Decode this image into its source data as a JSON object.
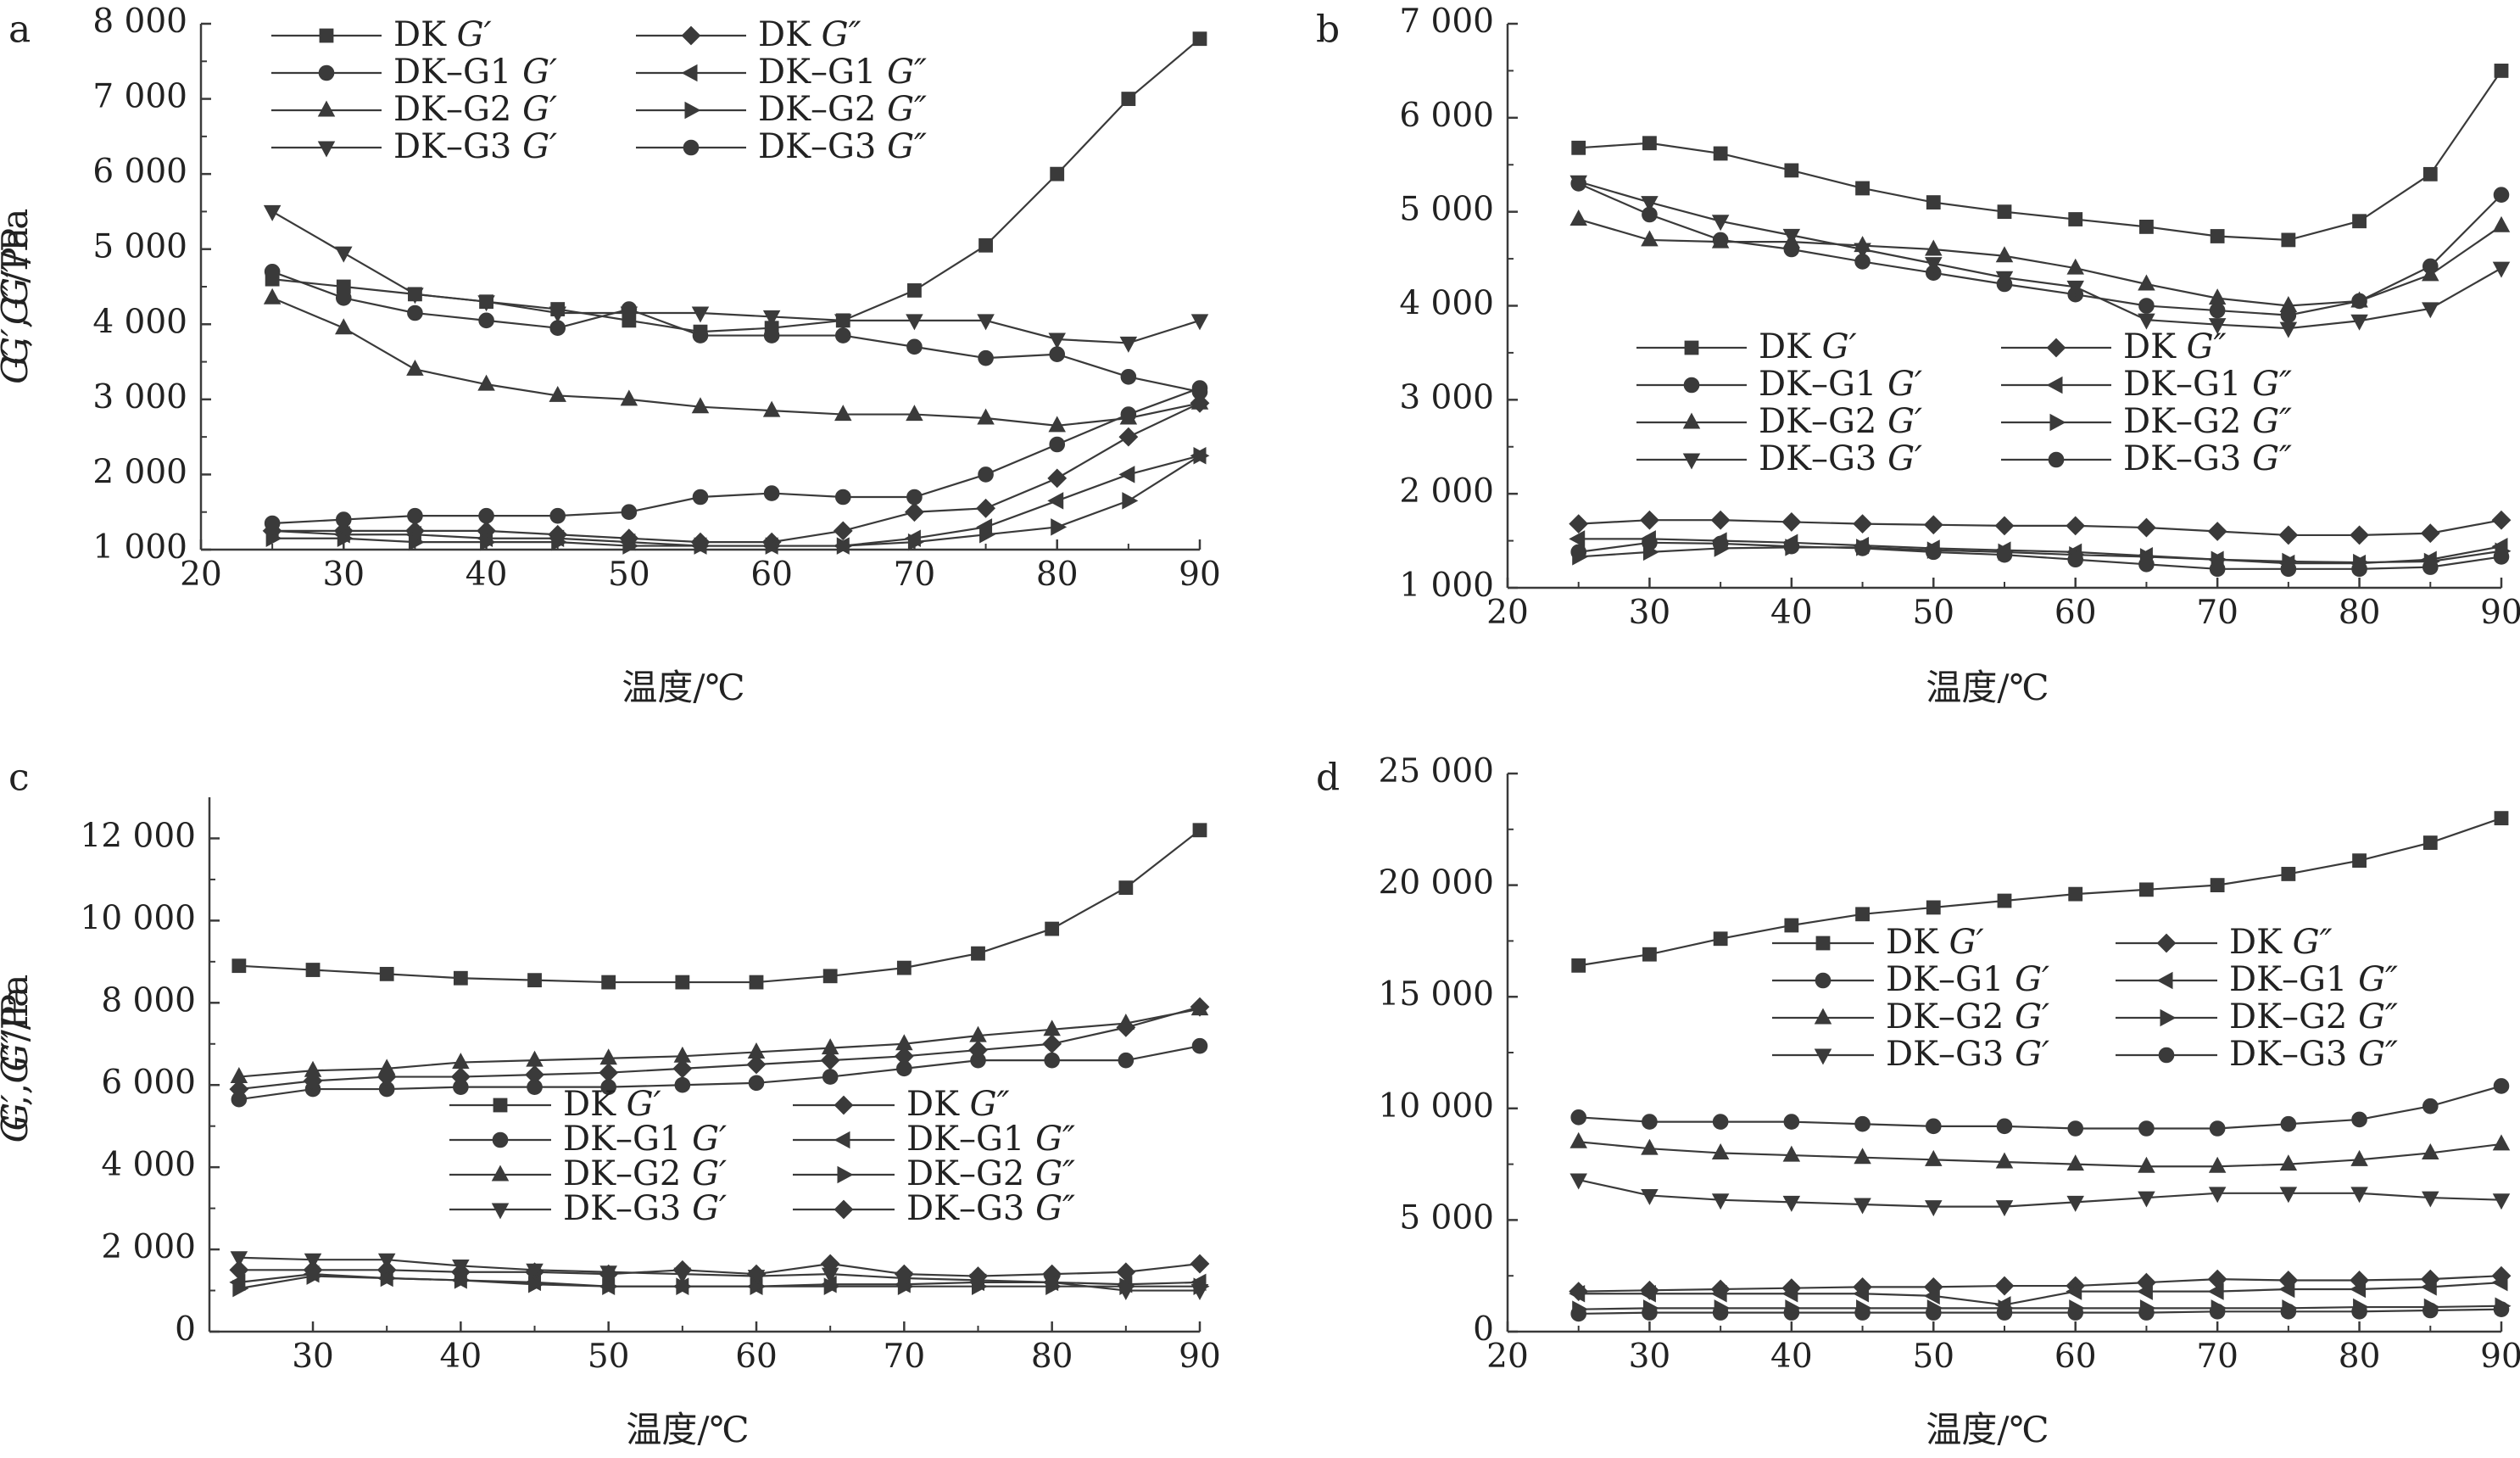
{
  "chart_data": [
    {
      "type": "line",
      "panel": "a",
      "xlabel": "温度/℃",
      "ylabel": "G′, G″/Pa",
      "xlim": [
        20,
        90
      ],
      "ylim": [
        1000,
        8000
      ],
      "xticks": [
        20,
        30,
        40,
        50,
        60,
        70,
        80,
        90
      ],
      "yticks": [
        1000,
        2000,
        3000,
        4000,
        5000,
        6000,
        7000,
        8000
      ],
      "ytick_labels": [
        "1 000",
        "2 000",
        "3 000",
        "4 000",
        "5 000",
        "6 000",
        "7 000",
        "8 000"
      ],
      "legend_position": "top",
      "x": [
        25,
        30,
        35,
        40,
        45,
        50,
        55,
        60,
        65,
        70,
        75,
        80,
        85,
        90
      ],
      "series": [
        {
          "name": "DK G′",
          "marker": "square",
          "values": [
            4600,
            4500,
            4400,
            4300,
            4200,
            4050,
            3900,
            3950,
            4050,
            4450,
            5050,
            6000,
            7000,
            7800
          ]
        },
        {
          "name": "DK G″",
          "marker": "diamond",
          "values": [
            1250,
            1250,
            1250,
            1250,
            1200,
            1150,
            1100,
            1100,
            1250,
            1500,
            1550,
            1950,
            2500,
            2950
          ]
        },
        {
          "name": "DK-G1 G′",
          "marker": "circle",
          "values": [
            4700,
            4350,
            4150,
            4050,
            3950,
            4200,
            3850,
            3850,
            3850,
            3700,
            3550,
            3600,
            3300,
            3100
          ]
        },
        {
          "name": "DK-G1 G″",
          "marker": "triangle-left",
          "values": [
            1250,
            1200,
            1200,
            1150,
            1150,
            1100,
            1050,
            1050,
            1050,
            1150,
            1300,
            1650,
            2000,
            2250
          ]
        },
        {
          "name": "DK-G2 G′",
          "marker": "triangle-up",
          "values": [
            4350,
            3950,
            3400,
            3200,
            3050,
            3000,
            2900,
            2850,
            2800,
            2800,
            2750,
            2650,
            2750,
            2950
          ]
        },
        {
          "name": "DK-G2 G″",
          "marker": "triangle-right",
          "values": [
            1150,
            1150,
            1100,
            1100,
            1100,
            1050,
            1050,
            1050,
            1050,
            1100,
            1200,
            1300,
            1650,
            2250
          ]
        },
        {
          "name": "DK-G3 G′",
          "marker": "triangle-down",
          "values": [
            5500,
            4950,
            4400,
            4300,
            4150,
            4150,
            4150,
            4100,
            4050,
            4050,
            4050,
            3800,
            3750,
            4050
          ]
        },
        {
          "name": "DK-G3 G″",
          "marker": "circle",
          "values": [
            1350,
            1400,
            1450,
            1450,
            1450,
            1500,
            1700,
            1750,
            1700,
            1700,
            2000,
            2400,
            2800,
            3150
          ]
        }
      ]
    },
    {
      "type": "line",
      "panel": "b",
      "xlabel": "温度/℃",
      "ylabel": "G′, G″/Pa",
      "xlim": [
        20,
        90
      ],
      "ylim": [
        1000,
        7000
      ],
      "xticks": [
        20,
        30,
        40,
        50,
        60,
        70,
        80,
        90
      ],
      "yticks": [
        1000,
        2000,
        3000,
        4000,
        5000,
        6000,
        7000
      ],
      "ytick_labels": [
        "1 000",
        "2 000",
        "3 000",
        "4 000",
        "5 000",
        "6 000",
        "7 000"
      ],
      "legend_position": "center",
      "x": [
        25,
        30,
        35,
        40,
        45,
        50,
        55,
        60,
        65,
        70,
        75,
        80,
        85,
        90
      ],
      "series": [
        {
          "name": "DK G′",
          "marker": "square",
          "values": [
            5680,
            5730,
            5620,
            5440,
            5250,
            5100,
            5000,
            4920,
            4840,
            4740,
            4700,
            4900,
            5400,
            6500
          ]
        },
        {
          "name": "DK G″",
          "marker": "diamond",
          "values": [
            1680,
            1720,
            1720,
            1700,
            1680,
            1670,
            1660,
            1660,
            1640,
            1600,
            1560,
            1560,
            1580,
            1720
          ]
        },
        {
          "name": "DK-G1 G′",
          "marker": "circle",
          "values": [
            5300,
            4970,
            4700,
            4600,
            4470,
            4350,
            4230,
            4120,
            4000,
            3950,
            3900,
            4050,
            4420,
            5180
          ]
        },
        {
          "name": "DK-G1 G″",
          "marker": "triangle-left",
          "values": [
            1520,
            1520,
            1500,
            1480,
            1450,
            1420,
            1400,
            1380,
            1340,
            1300,
            1260,
            1260,
            1300,
            1440
          ]
        },
        {
          "name": "DK-G2 G′",
          "marker": "triangle-up",
          "values": [
            4920,
            4700,
            4680,
            4680,
            4640,
            4600,
            4530,
            4400,
            4230,
            4080,
            4000,
            4050,
            4330,
            4850
          ]
        },
        {
          "name": "DK-G2 G″",
          "marker": "triangle-right",
          "values": [
            1330,
            1380,
            1420,
            1430,
            1430,
            1400,
            1380,
            1350,
            1330,
            1300,
            1280,
            1270,
            1280,
            1390
          ]
        },
        {
          "name": "DK-G3 G′",
          "marker": "triangle-down",
          "values": [
            5320,
            5100,
            4900,
            4750,
            4600,
            4450,
            4300,
            4200,
            3850,
            3800,
            3760,
            3840,
            3970,
            4400
          ]
        },
        {
          "name": "DK-G3 G″",
          "marker": "circle",
          "values": [
            1380,
            1480,
            1470,
            1440,
            1420,
            1380,
            1350,
            1300,
            1250,
            1200,
            1200,
            1200,
            1220,
            1330
          ]
        }
      ]
    },
    {
      "type": "line",
      "panel": "c",
      "xlabel": "温度/℃",
      "ylabel": "G′, G″/Pa",
      "xlim": [
        23,
        90
      ],
      "ylim": [
        0,
        13000
      ],
      "xticks": [
        30,
        40,
        50,
        60,
        70,
        80,
        90
      ],
      "yticks": [
        0,
        2000,
        4000,
        6000,
        8000,
        10000,
        12000
      ],
      "ytick_labels": [
        "0",
        "2 000",
        "4 000",
        "6 000",
        "8 000",
        "10 000",
        "12 000"
      ],
      "legend_position": "center",
      "x": [
        25,
        30,
        35,
        40,
        45,
        50,
        55,
        60,
        65,
        70,
        75,
        80,
        85,
        90
      ],
      "series": [
        {
          "name": "DK G′",
          "marker": "square",
          "values": [
            8900,
            8800,
            8700,
            8600,
            8550,
            8500,
            8500,
            8500,
            8650,
            8850,
            9200,
            9800,
            10800,
            12200
          ]
        },
        {
          "name": "DK G″",
          "marker": "diamond",
          "values": [
            1500,
            1500,
            1500,
            1450,
            1450,
            1400,
            1500,
            1400,
            1650,
            1400,
            1350,
            1400,
            1450,
            1650
          ]
        },
        {
          "name": "DK-G1 G′",
          "marker": "circle",
          "values": [
            5650,
            5900,
            5900,
            5950,
            5950,
            5950,
            6000,
            6050,
            6200,
            6400,
            6600,
            6600,
            6600,
            6950
          ]
        },
        {
          "name": "DK-G1 G″",
          "marker": "triangle-left",
          "values": [
            1200,
            1400,
            1300,
            1250,
            1200,
            1100,
            1100,
            1100,
            1150,
            1150,
            1200,
            1200,
            1150,
            1200
          ]
        },
        {
          "name": "DK-G2 G′",
          "marker": "triangle-up",
          "values": [
            6200,
            6350,
            6400,
            6550,
            6600,
            6650,
            6700,
            6800,
            6900,
            7000,
            7200,
            7350,
            7500,
            7850
          ]
        },
        {
          "name": "DK-G2 G″",
          "marker": "triangle-right",
          "values": [
            1050,
            1350,
            1300,
            1250,
            1150,
            1100,
            1100,
            1100,
            1100,
            1100,
            1100,
            1100,
            1100,
            1100
          ]
        },
        {
          "name": "DK-G3 G′",
          "marker": "triangle-down",
          "values": [
            1800,
            1750,
            1750,
            1600,
            1500,
            1450,
            1400,
            1350,
            1400,
            1300,
            1250,
            1200,
            1000,
            1000
          ]
        },
        {
          "name": "DK-G3 G″",
          "marker": "diamond",
          "values": [
            5900,
            6100,
            6200,
            6200,
            6250,
            6300,
            6400,
            6500,
            6600,
            6700,
            6850,
            7000,
            7400,
            7900
          ]
        }
      ]
    },
    {
      "type": "line",
      "panel": "d",
      "xlabel": "温度/℃",
      "ylabel": "G′, G″/Pa",
      "xlim": [
        20,
        90
      ],
      "ylim": [
        0,
        25000
      ],
      "xticks": [
        20,
        30,
        40,
        50,
        60,
        70,
        80,
        90
      ],
      "yticks": [
        0,
        5000,
        10000,
        15000,
        20000,
        25000
      ],
      "ytick_labels": [
        "0",
        "5 000",
        "10 000",
        "15 000",
        "20 000",
        "25 000"
      ],
      "legend_position": "upper-center",
      "x": [
        25,
        30,
        35,
        40,
        45,
        50,
        55,
        60,
        65,
        70,
        75,
        80,
        85,
        90
      ],
      "series": [
        {
          "name": "DK G′",
          "marker": "square",
          "values": [
            16400,
            16900,
            17600,
            18200,
            18700,
            19000,
            19300,
            19600,
            19800,
            20000,
            20500,
            21100,
            21900,
            23000
          ]
        },
        {
          "name": "DK G″",
          "marker": "diamond",
          "values": [
            1800,
            1850,
            1900,
            1950,
            2000,
            2000,
            2050,
            2050,
            2200,
            2350,
            2300,
            2300,
            2350,
            2500
          ]
        },
        {
          "name": "DK-G1 G′",
          "marker": "circle",
          "values": [
            9600,
            9400,
            9400,
            9400,
            9300,
            9200,
            9200,
            9100,
            9100,
            9100,
            9300,
            9500,
            10100,
            11000
          ]
        },
        {
          "name": "DK-G1 G″",
          "marker": "triangle-left",
          "values": [
            1700,
            1700,
            1700,
            1700,
            1700,
            1600,
            1200,
            1800,
            1800,
            1800,
            1900,
            1900,
            2000,
            2200
          ]
        },
        {
          "name": "DK-G2 G′",
          "marker": "triangle-up",
          "values": [
            8500,
            8200,
            8000,
            7900,
            7800,
            7700,
            7600,
            7500,
            7400,
            7400,
            7500,
            7700,
            8000,
            8400
          ]
        },
        {
          "name": "DK-G2 G″",
          "marker": "triangle-right",
          "values": [
            1000,
            1050,
            1050,
            1050,
            1050,
            1050,
            1050,
            1050,
            1050,
            1050,
            1050,
            1100,
            1100,
            1150
          ]
        },
        {
          "name": "DK-G3 G′",
          "marker": "triangle-down",
          "values": [
            6800,
            6100,
            5900,
            5800,
            5700,
            5600,
            5600,
            5800,
            6000,
            6200,
            6200,
            6200,
            6000,
            5900
          ]
        },
        {
          "name": "DK-G3 G″",
          "marker": "circle",
          "values": [
            800,
            850,
            850,
            850,
            850,
            850,
            850,
            850,
            850,
            900,
            900,
            900,
            950,
            1000
          ]
        }
      ]
    }
  ]
}
